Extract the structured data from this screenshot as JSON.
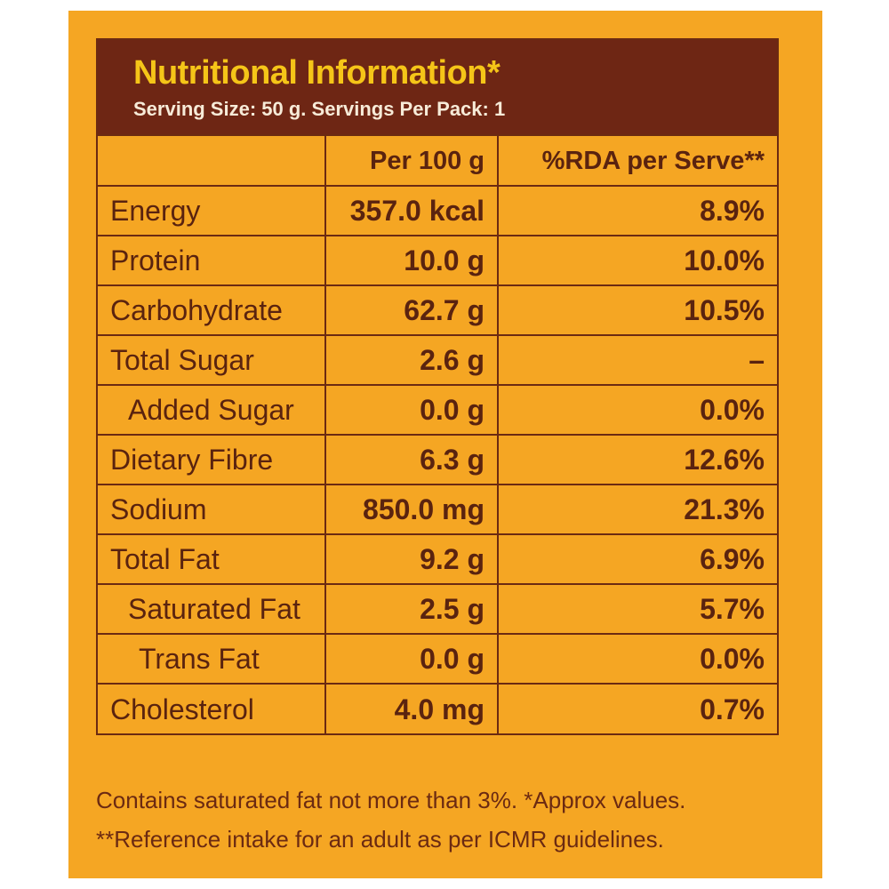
{
  "panel": {
    "title": "Nutritional Information*",
    "subtitle": "Serving Size: 50 g. Servings Per Pack: 1"
  },
  "table": {
    "headers": [
      "",
      "Per 100 g",
      "%RDA per Serve**"
    ],
    "rows": [
      {
        "name": "Energy",
        "per100": "357.0 kcal",
        "rda": "8.9%"
      },
      {
        "name": "Protein",
        "per100": "10.0 g",
        "rda": "10.0%"
      },
      {
        "name": "Carbohydrate",
        "per100": "62.7 g",
        "rda": "10.5%"
      },
      {
        "name": "Total Sugar",
        "per100": "2.6 g",
        "rda": "–"
      },
      {
        "name": "Added Sugar",
        "per100": "0.0 g",
        "rda": "0.0%"
      },
      {
        "name": "Dietary Fibre",
        "per100": "6.3 g",
        "rda": "12.6%"
      },
      {
        "name": "Sodium",
        "per100": "850.0 mg",
        "rda": "21.3%"
      },
      {
        "name": "Total Fat",
        "per100": "9.2 g",
        "rda": "6.9%"
      },
      {
        "name": "Saturated Fat",
        "per100": "2.5 g",
        "rda": "5.7%"
      },
      {
        "name": "Trans Fat",
        "per100": "0.0 g",
        "rda": "0.0%"
      },
      {
        "name": "Cholesterol",
        "per100": "4.0 mg",
        "rda": "0.7%"
      }
    ]
  },
  "footnotes": {
    "line1": "Contains saturated fat not more than 3%. *Approx values.",
    "line2": "**Reference intake for an adult as per ICMR guidelines."
  },
  "colors": {
    "background": "#F5A623",
    "header_band": "#6E2614",
    "title": "#F5C518",
    "text": "#5A230F"
  }
}
